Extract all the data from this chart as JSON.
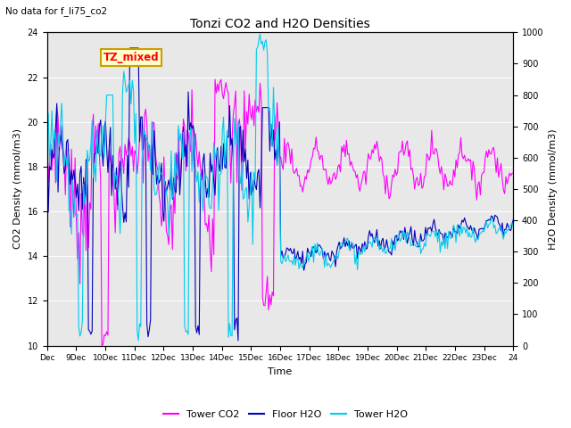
{
  "title": "Tonzi CO2 and H2O Densities",
  "subtitle": "No data for f_li75_co2",
  "xlabel": "Time",
  "ylabel_left": "CO2 Density (mmol/m3)",
  "ylabel_right": "H2O Density (mmol/m3)",
  "ylim_left": [
    10,
    24
  ],
  "ylim_right": [
    0,
    1000
  ],
  "yticks_left": [
    10,
    12,
    14,
    16,
    18,
    20,
    22,
    24
  ],
  "yticks_right": [
    0,
    100,
    200,
    300,
    400,
    500,
    600,
    700,
    800,
    900,
    1000
  ],
  "xtick_labels": [
    "Dec",
    "9Dec",
    "10Dec",
    "11Dec",
    "12Dec",
    "13Dec",
    "14Dec",
    "15Dec",
    "16Dec",
    "17Dec",
    "18Dec",
    "19Dec",
    "20Dec",
    "21Dec",
    "22Dec",
    "23Dec",
    "24"
  ],
  "annotation_text": "TZ_mixed",
  "annotation_box_facecolor": "#ffffcc",
  "annotation_box_edgecolor": "#c8a000",
  "annotation_text_color": "red",
  "legend_entries": [
    "Tower CO2",
    "Floor H2O",
    "Tower H2O"
  ],
  "line_colors": {
    "tower_co2": "#ff00ff",
    "floor_h2o": "#0000bb",
    "tower_h2o": "#00ccee"
  },
  "line_widths": {
    "tower_co2": 0.8,
    "floor_h2o": 0.8,
    "tower_h2o": 0.8
  },
  "bg_color": "#e8e8e8",
  "fig_bg_color": "#ffffff",
  "grid_color": "#ffffff",
  "n_points": 384
}
